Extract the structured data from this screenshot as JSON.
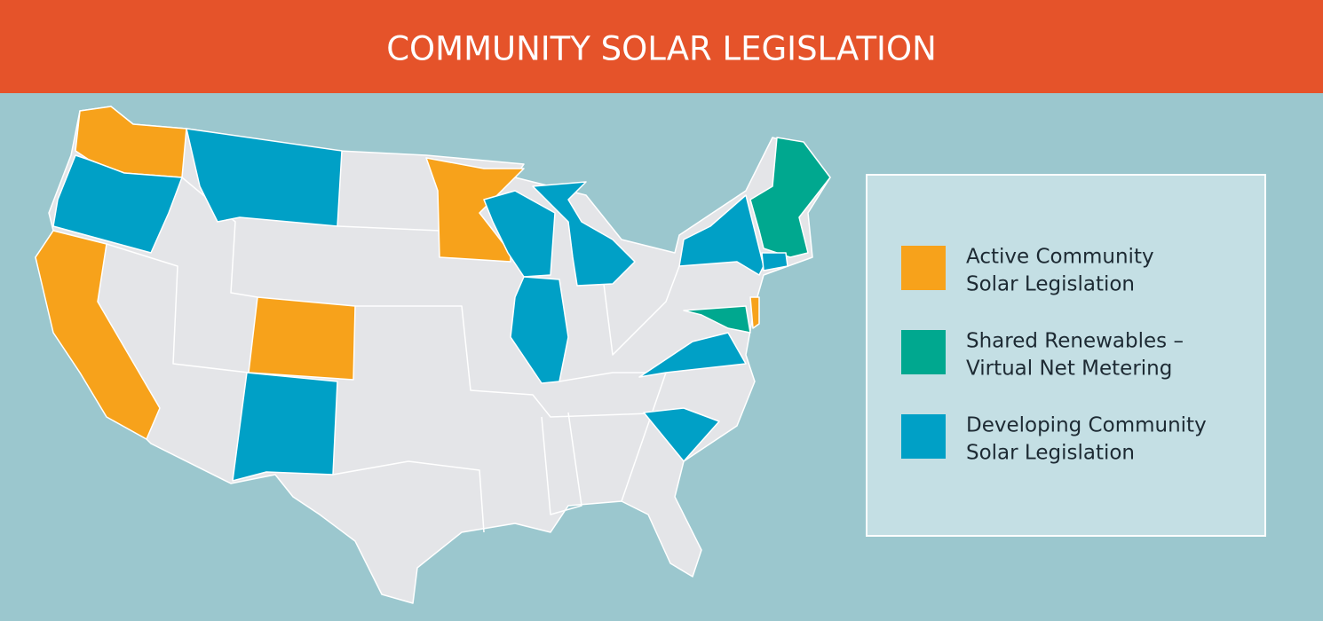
{
  "header": {
    "title": "COMMUNITY SOLAR LEGISLATION",
    "color": "#e5532a"
  },
  "legend": {
    "items": [
      {
        "label": [
          "Active Community",
          "Solar Legislation"
        ],
        "color": "#f7a21b"
      },
      {
        "label": [
          "Shared Renewables –",
          "Virtual Net Metering"
        ],
        "color": "#00a88f"
      },
      {
        "label": [
          "Developing Community",
          "Solar Legislation"
        ],
        "color": "#00a0c6"
      }
    ]
  }
}
